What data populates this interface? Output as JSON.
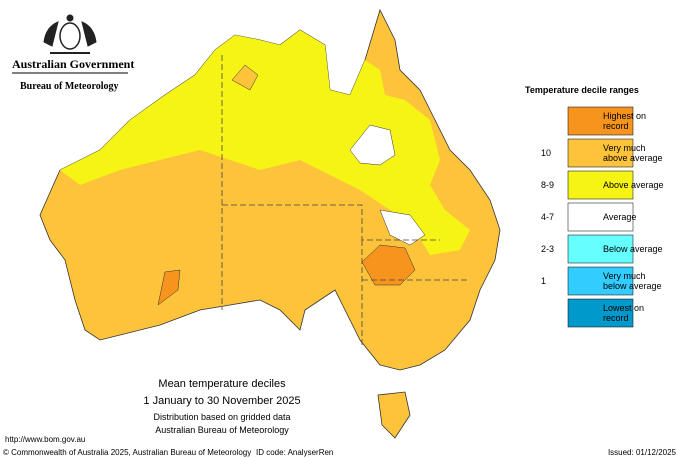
{
  "header": {
    "government": "Australian Government",
    "agency": "Bureau of Meteorology"
  },
  "legend": {
    "title": "Temperature decile ranges",
    "items": [
      {
        "label": [
          "Highest on",
          "record"
        ],
        "color": "#f7941d"
      },
      {
        "label": [
          "Very much",
          "above average"
        ],
        "decile": "10",
        "color": "#fdc33b"
      },
      {
        "label": [
          "Above average"
        ],
        "decile": "8-9",
        "color": "#f6f414"
      },
      {
        "label": [
          "Average"
        ],
        "decile": "4-7",
        "color": "#ffffff"
      },
      {
        "label": [
          "Below average"
        ],
        "decile": "2-3",
        "color": "#66ffff"
      },
      {
        "label": [
          "Very much",
          "below average"
        ],
        "decile": "1",
        "color": "#33ccff"
      },
      {
        "label": [
          "Lowest on",
          "record"
        ],
        "color": "#0099cc"
      }
    ]
  },
  "caption": {
    "title": "Mean temperature deciles",
    "period": "1 January to 30 November 2025",
    "note": "Distribution based on gridded data",
    "source": "Australian Bureau of Meteorology"
  },
  "footer": {
    "url": "http://www.bom.gov.au",
    "copyright": "© Commonwealth of Australia 2025, Australian Bureau of Meteorology",
    "id_code": "ID code: AnalyserRen",
    "issued": "Issued: 01/12/2025"
  }
}
